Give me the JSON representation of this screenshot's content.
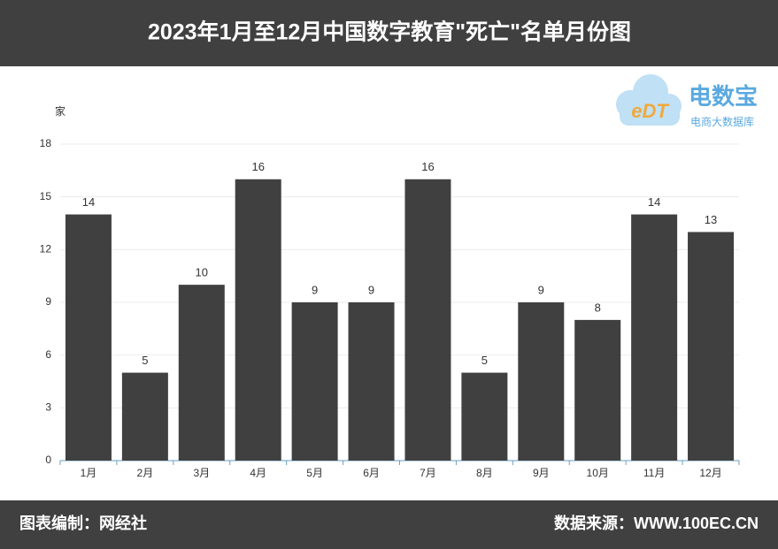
{
  "chart_data": {
    "type": "bar",
    "title": "2023年1月至12月中国数字教育\"死亡\"名单月份图",
    "y_label": "家",
    "categories": [
      "1月",
      "2月",
      "3月",
      "4月",
      "5月",
      "6月",
      "7月",
      "8月",
      "9月",
      "10月",
      "11月",
      "12月"
    ],
    "values": [
      14,
      5,
      10,
      16,
      9,
      9,
      16,
      5,
      9,
      8,
      14,
      13
    ],
    "color": "#404040",
    "ylim": [
      0,
      18
    ],
    "yticks": [
      0,
      3,
      6,
      9,
      12,
      15,
      18
    ],
    "grid": true
  },
  "logo": {
    "mark": "eDT",
    "name": "电数宝",
    "subtitle": "电商大数据库"
  },
  "footer": {
    "left": "图表编制：网经社",
    "right": "数据来源：WWW.100EC.CN"
  }
}
